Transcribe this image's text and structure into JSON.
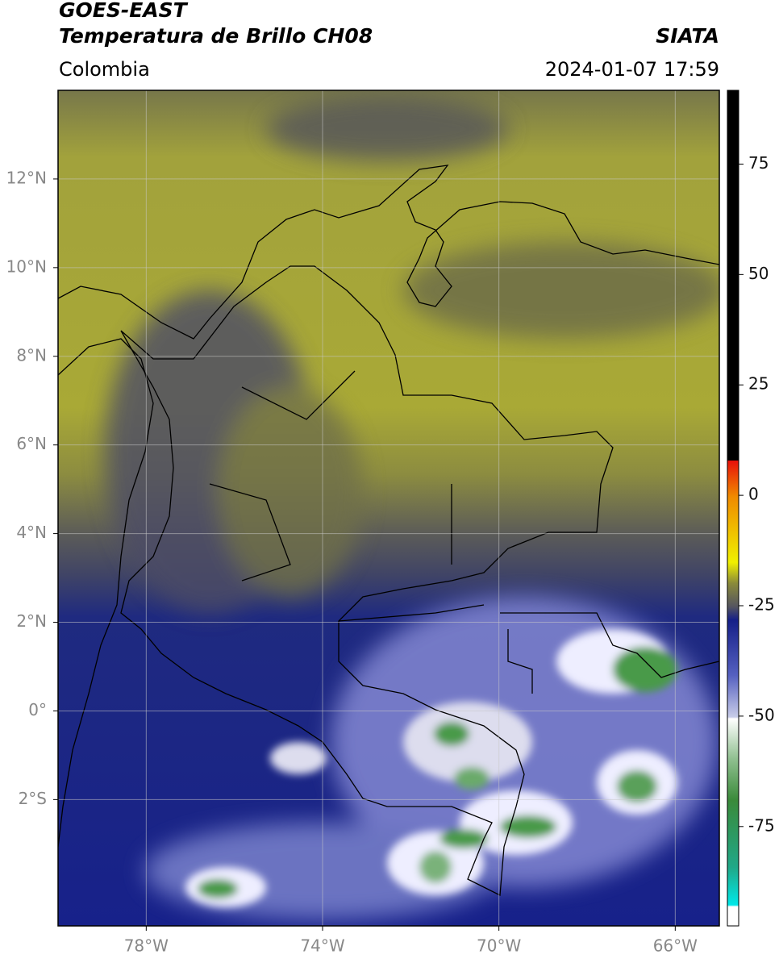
{
  "header": {
    "title_line1": "GOES-EAST",
    "title_line2": "Temperatura de Brillo CH08",
    "source": "SIATA",
    "region": "Colombia",
    "datetime": "2024-01-07 17:59"
  },
  "map": {
    "xlim": [
      -80,
      -65
    ],
    "ylim": [
      -4.85,
      14
    ],
    "grid": true,
    "xticks": [
      {
        "value": -78,
        "label": "78°W"
      },
      {
        "value": -74,
        "label": "74°W"
      },
      {
        "value": -70,
        "label": "70°W"
      },
      {
        "value": -66,
        "label": "66°W"
      }
    ],
    "yticks": [
      {
        "value": -2,
        "label": "2°S"
      },
      {
        "value": 0,
        "label": "0°"
      },
      {
        "value": 2,
        "label": "2°N"
      },
      {
        "value": 4,
        "label": "4°N"
      },
      {
        "value": 6,
        "label": "6°N"
      },
      {
        "value": 8,
        "label": "8°N"
      },
      {
        "value": 10,
        "label": "10°N"
      },
      {
        "value": 12,
        "label": "12°N"
      }
    ]
  },
  "colorbar": {
    "lim": [
      -97.5,
      91.7
    ],
    "ticks": [
      -75,
      -50,
      -25,
      0,
      25,
      50,
      75
    ]
  }
}
